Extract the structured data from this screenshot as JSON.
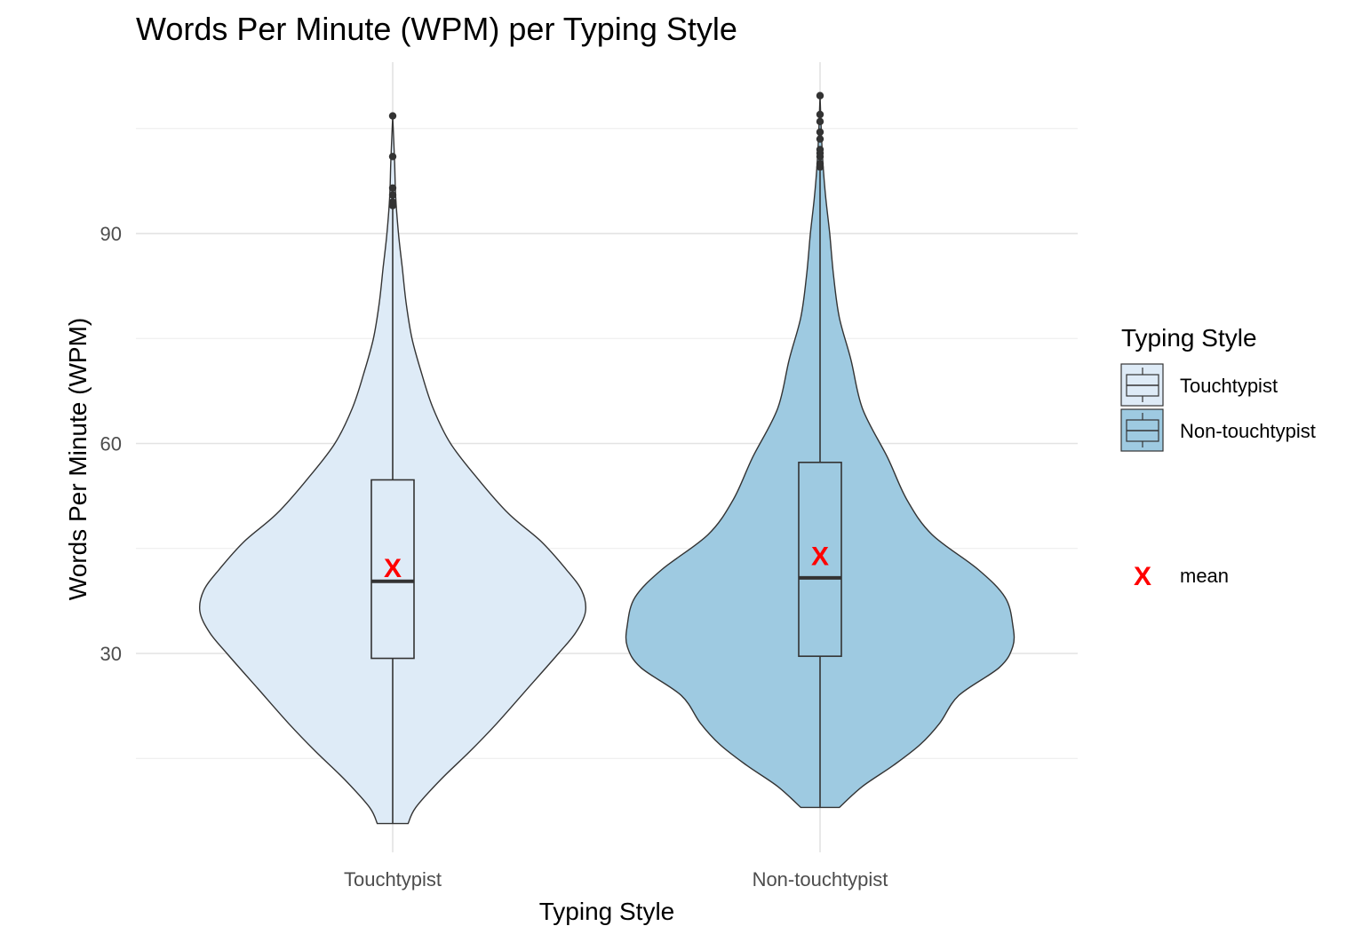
{
  "chart_data": {
    "type": "violin",
    "title": "Words Per Minute (WPM) per Typing Style",
    "xlabel": "Typing Style",
    "ylabel": "Words Per Minute (WPM)",
    "ylim": [
      3,
      113
    ],
    "y_ticks": [
      30,
      60,
      90
    ],
    "grid": "on",
    "legend": {
      "title": "Typing Style",
      "position": "right",
      "entries": [
        "Touchtypist",
        "Non-touchtypist"
      ],
      "mean_label": "mean",
      "mean_marker": "X"
    },
    "categories": [
      "Touchtypist",
      "Non-touchtypist"
    ],
    "series": [
      {
        "name": "Touchtypist",
        "color": "#deebf7",
        "box": {
          "q1": 29.3,
          "median": 40.3,
          "q3": 54.8,
          "whisker_low": 5.7,
          "whisker_high": 93.5
        },
        "mean": 42.3,
        "outliers": [
          94.0,
          94.5,
          95.5,
          96.5,
          101.0,
          106.8
        ],
        "violin_min": 5.7,
        "violin_max": 106.8,
        "density": [
          [
            5.7,
            0.08
          ],
          [
            8,
            0.12
          ],
          [
            12,
            0.25
          ],
          [
            16,
            0.4
          ],
          [
            20,
            0.54
          ],
          [
            25,
            0.7
          ],
          [
            30,
            0.86
          ],
          [
            33,
            0.95
          ],
          [
            36,
            1.0
          ],
          [
            39,
            0.98
          ],
          [
            42,
            0.9
          ],
          [
            46,
            0.77
          ],
          [
            50,
            0.6
          ],
          [
            55,
            0.44
          ],
          [
            60,
            0.3
          ],
          [
            65,
            0.21
          ],
          [
            70,
            0.15
          ],
          [
            75,
            0.1
          ],
          [
            80,
            0.07
          ],
          [
            85,
            0.05
          ],
          [
            90,
            0.03
          ],
          [
            95,
            0.016
          ],
          [
            100,
            0.01
          ],
          [
            106.8,
            0.0
          ]
        ]
      },
      {
        "name": "Non-touchtypist",
        "color": "#9ecae1",
        "box": {
          "q1": 29.6,
          "median": 40.8,
          "q3": 57.3,
          "whisker_low": 8.0,
          "whisker_high": 99.0
        },
        "mean": 44.0,
        "outliers": [
          99.5,
          100.0,
          101.0,
          101.5,
          102.0,
          103.5,
          104.5,
          106.0,
          107.0,
          109.7
        ],
        "violin_min": 8.0,
        "violin_max": 109.7,
        "density": [
          [
            8,
            0.1
          ],
          [
            11,
            0.22
          ],
          [
            14,
            0.38
          ],
          [
            17,
            0.52
          ],
          [
            20,
            0.62
          ],
          [
            24,
            0.72
          ],
          [
            28,
            0.93
          ],
          [
            31,
            1.0
          ],
          [
            34,
            1.0
          ],
          [
            38,
            0.96
          ],
          [
            42,
            0.82
          ],
          [
            47,
            0.58
          ],
          [
            52,
            0.45
          ],
          [
            58,
            0.35
          ],
          [
            65,
            0.22
          ],
          [
            72,
            0.16
          ],
          [
            78,
            0.1
          ],
          [
            84,
            0.07
          ],
          [
            90,
            0.05
          ],
          [
            95,
            0.03
          ],
          [
            100,
            0.015
          ],
          [
            105,
            0.006
          ],
          [
            109.7,
            0.0
          ]
        ]
      }
    ]
  }
}
